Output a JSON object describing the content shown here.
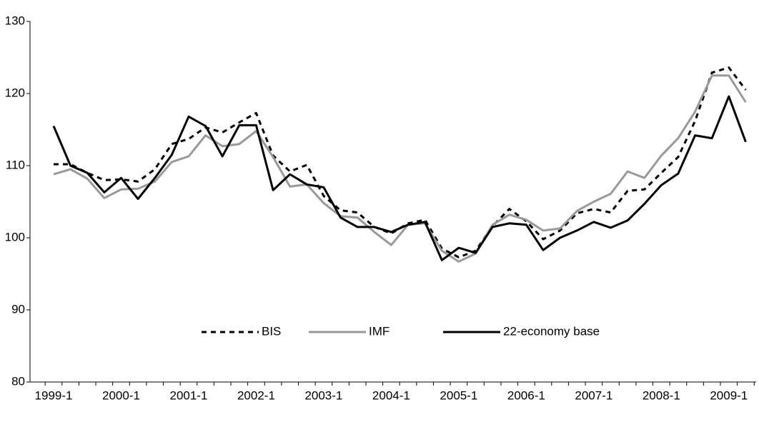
{
  "chart_data": {
    "type": "line",
    "categories": [
      "1999-1",
      null,
      null,
      null,
      "2000-1",
      null,
      null,
      null,
      "2001-1",
      null,
      null,
      null,
      "2002-1",
      null,
      null,
      null,
      "2003-1",
      null,
      null,
      null,
      "2004-1",
      null,
      null,
      null,
      "2005-1",
      null,
      null,
      null,
      "2006-1",
      null,
      null,
      null,
      "2007-1",
      null,
      null,
      null,
      "2008-1",
      null,
      null,
      null,
      "2009-1",
      null
    ],
    "ylim": [
      80,
      130
    ],
    "yticks": [
      80,
      90,
      100,
      110,
      120,
      130
    ],
    "series": [
      {
        "name": "BIS",
        "color": "#000000",
        "line_style": "dashed",
        "values": [
          110.2,
          110.2,
          109,
          108,
          108.1,
          107.8,
          109.5,
          113,
          113.7,
          115.3,
          114.6,
          116,
          117.3,
          111.4,
          109.2,
          110.1,
          105.8,
          103.8,
          103.5,
          101.5,
          100.6,
          102,
          102.5,
          98.5,
          97.3,
          98.2,
          101.6,
          104,
          102.3,
          99.8,
          101,
          103.4,
          104,
          103.5,
          106.5,
          106.7,
          109,
          111.2,
          116.2,
          122.9,
          123.6,
          120.5
        ]
      },
      {
        "name": "IMF",
        "color": "#999999",
        "line_style": "solid",
        "values": [
          108.8,
          109.5,
          108.2,
          105.5,
          106.7,
          106.8,
          107.8,
          110.5,
          111.3,
          114.2,
          112.7,
          113,
          114.8,
          111.2,
          107.1,
          107.4,
          104.8,
          103,
          102.8,
          100.8,
          99,
          101.8,
          102,
          98.2,
          96.7,
          97.8,
          101.8,
          103.2,
          102.5,
          101,
          101.3,
          103.7,
          105,
          106.1,
          109.2,
          108.3,
          111.4,
          113.8,
          117.5,
          122.5,
          122.5,
          118.8
        ]
      },
      {
        "name": "22-economy base",
        "color": "#000000",
        "line_style": "solid",
        "values": [
          115.5,
          110,
          109,
          106.3,
          108.3,
          105.4,
          108.3,
          111.5,
          116.8,
          115.5,
          111.3,
          115.6,
          115.6,
          106.6,
          108.8,
          107.4,
          107,
          102.8,
          101.5,
          101.5,
          100.8,
          101.8,
          102.2,
          96.9,
          98.6,
          97.9,
          101.5,
          102,
          101.8,
          98.3,
          100,
          101,
          102.2,
          101.4,
          102.4,
          104.7,
          107.3,
          108.9,
          114.2,
          113.8,
          119.6,
          113.3
        ]
      }
    ]
  }
}
